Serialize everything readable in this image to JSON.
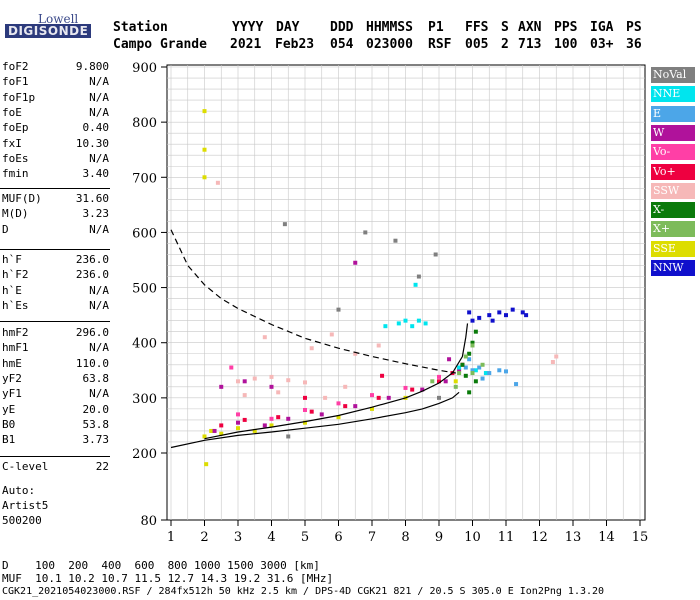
{
  "logo": {
    "line1": "Lowell",
    "line2": "DIGISONDE"
  },
  "header": {
    "labels": [
      "Station",
      "YYYY",
      "DAY",
      "DDD",
      "HHMMSS",
      "P1",
      "FFS",
      "S",
      "AXN",
      "PPS",
      "IGA",
      "PS"
    ],
    "values": [
      "Campo Grande",
      "2021",
      "Feb23",
      "054",
      "023000",
      "RSF",
      "005",
      "2",
      "713",
      "100",
      "03+",
      "36"
    ]
  },
  "params": {
    "group1": [
      {
        "k": "foF2",
        "v": "9.800"
      },
      {
        "k": "foF1",
        "v": "N/A"
      },
      {
        "k": "foF1p",
        "v": "N/A"
      },
      {
        "k": "foE",
        "v": "N/A"
      },
      {
        "k": "foEp",
        "v": "0.40"
      },
      {
        "k": "fxI",
        "v": "10.30"
      },
      {
        "k": "foEs",
        "v": "N/A"
      },
      {
        "k": "fmin",
        "v": "3.40"
      }
    ],
    "group2": [
      {
        "k": "MUF(D)",
        "v": "31.60"
      },
      {
        "k": "M(D)",
        "v": "3.23"
      },
      {
        "k": "D",
        "v": "N/A"
      }
    ],
    "group3": [
      {
        "k": "h`F",
        "v": "236.0"
      },
      {
        "k": "h`F2",
        "v": "236.0"
      },
      {
        "k": "h`E",
        "v": "N/A"
      },
      {
        "k": "h`Es",
        "v": "N/A"
      }
    ],
    "group4": [
      {
        "k": "hmF2",
        "v": "296.0"
      },
      {
        "k": "hmF1",
        "v": "N/A"
      },
      {
        "k": "hmE",
        "v": "110.0"
      },
      {
        "k": "yF2",
        "v": "63.8"
      },
      {
        "k": "yF1",
        "v": "N/A"
      },
      {
        "k": "yE",
        "v": "20.0"
      },
      {
        "k": "B0",
        "v": "53.8"
      },
      {
        "k": "B1",
        "v": "3.73"
      }
    ],
    "group5": [
      {
        "k": "C-level",
        "v": "22"
      }
    ],
    "auto": [
      "Auto:",
      "Artist5",
      "500200"
    ]
  },
  "legend": [
    {
      "label": "NoVal",
      "color": "#7f7f7f",
      "text": "#ffffff"
    },
    {
      "label": "NNE",
      "color": "#00e5ee",
      "text": "#ffffff"
    },
    {
      "label": "E",
      "color": "#4ca6e8",
      "text": "#ffffff"
    },
    {
      "label": "W",
      "color": "#b0129b",
      "text": "#ffffff"
    },
    {
      "label": "Vo-",
      "color": "#ff3fa6",
      "text": "#ffffff"
    },
    {
      "label": "Vo+",
      "color": "#ee0040",
      "text": "#ffffff"
    },
    {
      "label": "SSW",
      "color": "#f6b8b8",
      "text": "#ffffff"
    },
    {
      "label": "X-",
      "color": "#0a7a0a",
      "text": "#ffffff"
    },
    {
      "label": "X+",
      "color": "#7dbb5a",
      "text": "#ffffff"
    },
    {
      "label": "SSE",
      "color": "#dddd00",
      "text": "#ffffff"
    },
    {
      "label": "NNW",
      "color": "#1010cc",
      "text": "#ffffff"
    }
  ],
  "footer": {
    "line1": "D    100  200  400  600  800 1000 1500 3000 [km]",
    "line2": "MUF  10.1 10.2 10.7 11.5 12.7 14.3 19.2 31.6 [MHz]",
    "line3": "CGK21_2021054023000.RSF / 284fx512h 50 kHz 2.5 km / DPS-4D CGK21 821 / 20.5 S 305.0 E Ion2Png 1.3.20"
  },
  "chart_data": {
    "type": "scatter",
    "title": "",
    "xlabel": "",
    "ylabel": "",
    "xlim": [
      1,
      15
    ],
    "ylim": [
      80,
      900
    ],
    "x_ticks": [
      1,
      2,
      3,
      4,
      5,
      6,
      7,
      8,
      9,
      10,
      11,
      12,
      13,
      14,
      15
    ],
    "y_ticks": [
      80,
      200,
      300,
      400,
      500,
      600,
      700,
      800,
      900
    ],
    "grid": true,
    "legend_position": "right",
    "series": [
      {
        "name": "SSE",
        "color": "#dddd00",
        "points": [
          [
            2.0,
            230
          ],
          [
            2.2,
            240
          ],
          [
            2.5,
            235
          ],
          [
            3.0,
            245
          ],
          [
            3.5,
            240
          ],
          [
            4.0,
            250
          ],
          [
            5.0,
            255
          ],
          [
            6.0,
            265
          ],
          [
            7.0,
            280
          ],
          [
            8.0,
            300
          ],
          [
            2.0,
            750
          ],
          [
            2.0,
            700
          ],
          [
            2.0,
            820
          ],
          [
            2.05,
            180
          ],
          [
            9.5,
            330
          ]
        ]
      },
      {
        "name": "W",
        "color": "#b0129b",
        "points": [
          [
            2.3,
            240
          ],
          [
            3.0,
            255
          ],
          [
            3.8,
            250
          ],
          [
            4.5,
            262
          ],
          [
            5.5,
            270
          ],
          [
            6.5,
            285
          ],
          [
            7.5,
            300
          ],
          [
            8.5,
            315
          ],
          [
            9.2,
            330
          ],
          [
            9.6,
            350
          ],
          [
            3.2,
            330
          ],
          [
            4.0,
            320
          ],
          [
            2.5,
            320
          ],
          [
            6.5,
            545
          ],
          [
            9.3,
            370
          ]
        ]
      },
      {
        "name": "Vo+",
        "color": "#ee0040",
        "points": [
          [
            2.5,
            250
          ],
          [
            3.2,
            260
          ],
          [
            4.2,
            265
          ],
          [
            5.2,
            275
          ],
          [
            6.2,
            285
          ],
          [
            7.2,
            300
          ],
          [
            8.2,
            315
          ],
          [
            9.0,
            330
          ],
          [
            9.4,
            345
          ],
          [
            9.7,
            360
          ],
          [
            5.0,
            300
          ],
          [
            7.3,
            340
          ]
        ]
      },
      {
        "name": "SSW",
        "color": "#f6b8b8",
        "points": [
          [
            3.0,
            330
          ],
          [
            3.5,
            335
          ],
          [
            4.0,
            338
          ],
          [
            4.5,
            332
          ],
          [
            5.0,
            328
          ],
          [
            3.2,
            305
          ],
          [
            4.2,
            310
          ],
          [
            5.6,
            300
          ],
          [
            6.2,
            320
          ],
          [
            6.5,
            380
          ],
          [
            5.2,
            390
          ],
          [
            2.4,
            690
          ],
          [
            3.8,
            410
          ],
          [
            5.8,
            415
          ],
          [
            7.2,
            395
          ],
          [
            12.4,
            365
          ],
          [
            12.5,
            375
          ]
        ]
      },
      {
        "name": "NNE",
        "color": "#00e5ee",
        "points": [
          [
            7.8,
            435
          ],
          [
            8.0,
            440
          ],
          [
            8.2,
            430
          ],
          [
            8.4,
            440
          ],
          [
            8.6,
            435
          ],
          [
            7.4,
            430
          ],
          [
            8.3,
            505
          ],
          [
            9.6,
            355
          ],
          [
            10.1,
            350
          ],
          [
            10.4,
            345
          ]
        ]
      },
      {
        "name": "E",
        "color": "#4ca6e8",
        "points": [
          [
            9.8,
            355
          ],
          [
            10.0,
            350
          ],
          [
            10.2,
            355
          ],
          [
            10.5,
            345
          ],
          [
            10.8,
            350
          ],
          [
            11.0,
            348
          ],
          [
            9.9,
            370
          ],
          [
            10.3,
            335
          ],
          [
            11.3,
            325
          ]
        ]
      },
      {
        "name": "NNW",
        "color": "#1010cc",
        "points": [
          [
            10.2,
            445
          ],
          [
            10.5,
            450
          ],
          [
            10.8,
            455
          ],
          [
            11.0,
            450
          ],
          [
            11.2,
            460
          ],
          [
            11.5,
            455
          ],
          [
            11.6,
            450
          ],
          [
            10.0,
            440
          ],
          [
            10.6,
            440
          ],
          [
            9.9,
            455
          ]
        ]
      },
      {
        "name": "X-",
        "color": "#0a7a0a",
        "points": [
          [
            9.7,
            360
          ],
          [
            9.9,
            380
          ],
          [
            10.0,
            400
          ],
          [
            10.1,
            420
          ],
          [
            9.8,
            340
          ],
          [
            10.1,
            330
          ],
          [
            9.9,
            310
          ]
        ]
      },
      {
        "name": "X+",
        "color": "#7dbb5a",
        "points": [
          [
            9.5,
            320
          ],
          [
            9.6,
            345
          ],
          [
            9.8,
            375
          ],
          [
            10.0,
            395
          ],
          [
            10.3,
            360
          ],
          [
            8.8,
            330
          ],
          [
            10.0,
            345
          ]
        ]
      },
      {
        "name": "Vo-",
        "color": "#ff3fa6",
        "points": [
          [
            3.0,
            270
          ],
          [
            4.0,
            262
          ],
          [
            5.0,
            278
          ],
          [
            6.0,
            290
          ],
          [
            7.0,
            305
          ],
          [
            8.0,
            318
          ],
          [
            9.0,
            338
          ],
          [
            2.8,
            355
          ]
        ]
      },
      {
        "name": "NoVal",
        "color": "#7f7f7f",
        "points": [
          [
            4.4,
            615
          ],
          [
            6.8,
            600
          ],
          [
            8.4,
            520
          ],
          [
            8.9,
            560
          ],
          [
            7.7,
            585
          ],
          [
            9.0,
            300
          ],
          [
            4.5,
            230
          ],
          [
            6.0,
            460
          ]
        ]
      }
    ],
    "curves": [
      {
        "style": "solid",
        "points": [
          [
            1,
            210
          ],
          [
            2,
            223
          ],
          [
            3,
            232
          ],
          [
            4,
            238
          ],
          [
            5,
            245
          ],
          [
            6,
            252
          ],
          [
            7,
            262
          ],
          [
            8,
            273
          ],
          [
            8.5,
            280
          ],
          [
            9,
            290
          ],
          [
            9.4,
            300
          ],
          [
            9.6,
            310
          ]
        ]
      },
      {
        "style": "solid",
        "points": [
          [
            2,
            226
          ],
          [
            3,
            238
          ],
          [
            4,
            247
          ],
          [
            5,
            257
          ],
          [
            6,
            268
          ],
          [
            7,
            283
          ],
          [
            8,
            300
          ],
          [
            8.5,
            312
          ],
          [
            9,
            327
          ],
          [
            9.4,
            345
          ],
          [
            9.7,
            375
          ],
          [
            9.8,
            410
          ],
          [
            9.85,
            435
          ]
        ]
      },
      {
        "style": "dashed",
        "points": [
          [
            1,
            605
          ],
          [
            1.5,
            540
          ],
          [
            2,
            505
          ],
          [
            2.5,
            480
          ],
          [
            3,
            462
          ],
          [
            4,
            433
          ],
          [
            5,
            408
          ],
          [
            6,
            390
          ],
          [
            7,
            375
          ],
          [
            8,
            362
          ],
          [
            9,
            350
          ],
          [
            9.5,
            345
          ]
        ]
      }
    ]
  }
}
